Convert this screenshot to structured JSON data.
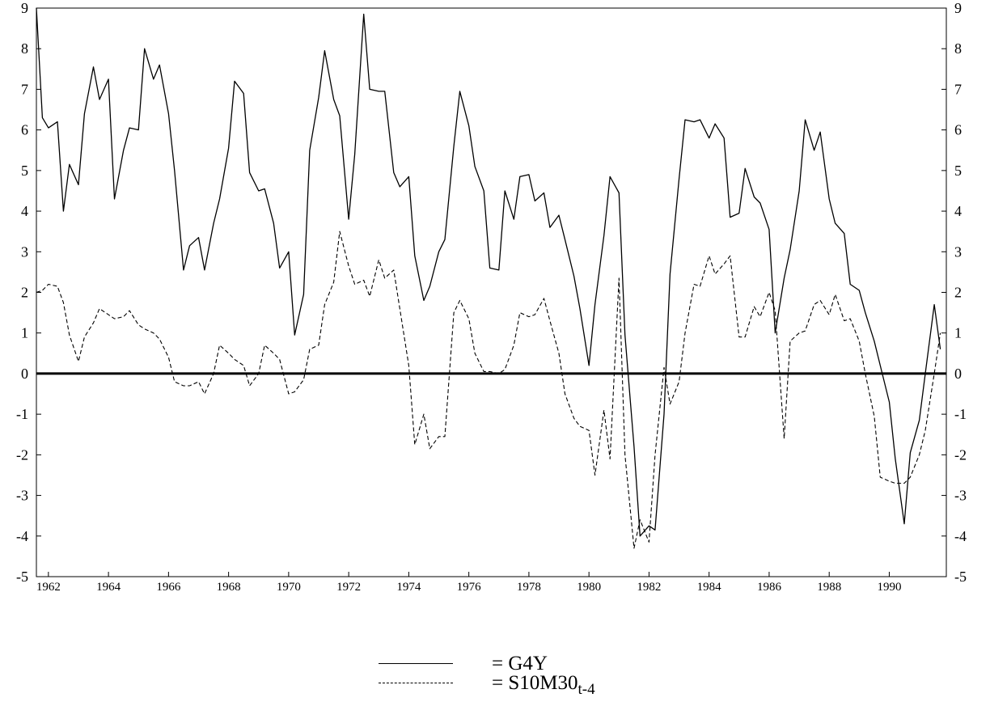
{
  "chart_data": {
    "type": "line",
    "x_ticks": [
      "1962",
      "1964",
      "1966",
      "1968",
      "1970",
      "1972",
      "1974",
      "1976",
      "1978",
      "1980",
      "1982",
      "1984",
      "1986",
      "1988",
      "1990"
    ],
    "y_ticks": [
      "9",
      "8",
      "7",
      "6",
      "5",
      "4",
      "3",
      "2",
      "1",
      "0",
      "-1",
      "-2",
      "-3",
      "-4",
      "-5"
    ],
    "xlim": [
      1961.6,
      1991.9
    ],
    "ylim": [
      -5,
      9
    ],
    "series": [
      {
        "name": "G4Y",
        "style": "solid",
        "points": [
          [
            1961.6,
            9.0
          ],
          [
            1961.8,
            6.3
          ],
          [
            1962.0,
            6.05
          ],
          [
            1962.3,
            6.2
          ],
          [
            1962.5,
            4.0
          ],
          [
            1962.7,
            5.15
          ],
          [
            1963.0,
            4.65
          ],
          [
            1963.2,
            6.4
          ],
          [
            1963.5,
            7.55
          ],
          [
            1963.7,
            6.75
          ],
          [
            1964.0,
            7.25
          ],
          [
            1964.2,
            4.3
          ],
          [
            1964.5,
            5.5
          ],
          [
            1964.7,
            6.05
          ],
          [
            1965.0,
            6.0
          ],
          [
            1965.2,
            8.0
          ],
          [
            1965.5,
            7.25
          ],
          [
            1965.7,
            7.6
          ],
          [
            1966.0,
            6.4
          ],
          [
            1966.2,
            5.0
          ],
          [
            1966.5,
            2.55
          ],
          [
            1966.7,
            3.15
          ],
          [
            1967.0,
            3.35
          ],
          [
            1967.2,
            2.55
          ],
          [
            1967.5,
            3.7
          ],
          [
            1967.7,
            4.3
          ],
          [
            1968.0,
            5.55
          ],
          [
            1968.2,
            7.2
          ],
          [
            1968.5,
            6.9
          ],
          [
            1968.7,
            4.95
          ],
          [
            1969.0,
            4.5
          ],
          [
            1969.2,
            4.55
          ],
          [
            1969.5,
            3.7
          ],
          [
            1969.7,
            2.6
          ],
          [
            1970.0,
            3.0
          ],
          [
            1970.2,
            0.95
          ],
          [
            1970.5,
            1.95
          ],
          [
            1970.7,
            5.5
          ],
          [
            1971.0,
            6.8
          ],
          [
            1971.2,
            7.95
          ],
          [
            1971.5,
            6.75
          ],
          [
            1971.7,
            6.35
          ],
          [
            1972.0,
            3.8
          ],
          [
            1972.2,
            5.4
          ],
          [
            1972.5,
            8.85
          ],
          [
            1972.7,
            7.0
          ],
          [
            1973.0,
            6.95
          ],
          [
            1973.2,
            6.95
          ],
          [
            1973.5,
            4.95
          ],
          [
            1973.7,
            4.6
          ],
          [
            1974.0,
            4.85
          ],
          [
            1974.2,
            2.9
          ],
          [
            1974.5,
            1.8
          ],
          [
            1974.7,
            2.15
          ],
          [
            1975.0,
            3.0
          ],
          [
            1975.2,
            3.3
          ],
          [
            1975.5,
            5.6
          ],
          [
            1975.7,
            6.95
          ],
          [
            1976.0,
            6.1
          ],
          [
            1976.2,
            5.1
          ],
          [
            1976.5,
            4.5
          ],
          [
            1976.7,
            2.6
          ],
          [
            1977.0,
            2.55
          ],
          [
            1977.2,
            4.5
          ],
          [
            1977.5,
            3.8
          ],
          [
            1977.7,
            4.85
          ],
          [
            1978.0,
            4.9
          ],
          [
            1978.2,
            4.25
          ],
          [
            1978.5,
            4.45
          ],
          [
            1978.7,
            3.6
          ],
          [
            1979.0,
            3.9
          ],
          [
            1979.2,
            3.3
          ],
          [
            1979.5,
            2.4
          ],
          [
            1979.7,
            1.6
          ],
          [
            1980.0,
            0.2
          ],
          [
            1980.2,
            1.7
          ],
          [
            1980.5,
            3.4
          ],
          [
            1980.7,
            4.85
          ],
          [
            1981.0,
            4.45
          ],
          [
            1981.2,
            0.95
          ],
          [
            1981.5,
            -1.8
          ],
          [
            1981.7,
            -4.0
          ],
          [
            1982.0,
            -3.75
          ],
          [
            1982.2,
            -3.85
          ],
          [
            1982.5,
            -1.0
          ],
          [
            1982.7,
            2.45
          ],
          [
            1983.0,
            4.8
          ],
          [
            1983.2,
            6.25
          ],
          [
            1983.5,
            6.2
          ],
          [
            1983.7,
            6.25
          ],
          [
            1984.0,
            5.8
          ],
          [
            1984.2,
            6.15
          ],
          [
            1984.5,
            5.8
          ],
          [
            1984.7,
            3.85
          ],
          [
            1985.0,
            3.95
          ],
          [
            1985.2,
            5.05
          ],
          [
            1985.5,
            4.35
          ],
          [
            1985.7,
            4.2
          ],
          [
            1986.0,
            3.55
          ],
          [
            1986.2,
            1.0
          ],
          [
            1986.5,
            2.35
          ],
          [
            1986.7,
            3.05
          ],
          [
            1987.0,
            4.5
          ],
          [
            1987.2,
            6.25
          ],
          [
            1987.5,
            5.5
          ],
          [
            1987.7,
            5.95
          ],
          [
            1988.0,
            4.3
          ],
          [
            1988.2,
            3.7
          ],
          [
            1988.5,
            3.45
          ],
          [
            1988.7,
            2.2
          ],
          [
            1989.0,
            2.05
          ],
          [
            1989.2,
            1.5
          ],
          [
            1989.5,
            0.8
          ],
          [
            1989.7,
            0.2
          ],
          [
            1990.0,
            -0.7
          ],
          [
            1990.2,
            -2.1
          ],
          [
            1990.5,
            -3.7
          ],
          [
            1990.7,
            -1.95
          ],
          [
            1991.0,
            -1.15
          ],
          [
            1991.2,
            0.0
          ],
          [
            1991.5,
            1.7
          ],
          [
            1991.7,
            0.6
          ]
        ]
      },
      {
        "name": "S10M30",
        "name_subscript": "t-4",
        "style": "dashed",
        "points": [
          [
            1961.6,
            2.0
          ],
          [
            1961.8,
            2.05
          ],
          [
            1962.0,
            2.2
          ],
          [
            1962.3,
            2.15
          ],
          [
            1962.5,
            1.75
          ],
          [
            1962.7,
            0.95
          ],
          [
            1963.0,
            0.3
          ],
          [
            1963.2,
            0.9
          ],
          [
            1963.5,
            1.25
          ],
          [
            1963.7,
            1.6
          ],
          [
            1964.0,
            1.45
          ],
          [
            1964.2,
            1.35
          ],
          [
            1964.5,
            1.4
          ],
          [
            1964.7,
            1.55
          ],
          [
            1965.0,
            1.2
          ],
          [
            1965.2,
            1.1
          ],
          [
            1965.5,
            1.0
          ],
          [
            1965.7,
            0.85
          ],
          [
            1966.0,
            0.4
          ],
          [
            1966.2,
            -0.2
          ],
          [
            1966.5,
            -0.3
          ],
          [
            1966.7,
            -0.3
          ],
          [
            1967.0,
            -0.2
          ],
          [
            1967.2,
            -0.5
          ],
          [
            1967.5,
            0.0
          ],
          [
            1967.7,
            0.7
          ],
          [
            1968.0,
            0.5
          ],
          [
            1968.2,
            0.35
          ],
          [
            1968.5,
            0.2
          ],
          [
            1968.7,
            -0.3
          ],
          [
            1969.0,
            0.0
          ],
          [
            1969.2,
            0.7
          ],
          [
            1969.5,
            0.5
          ],
          [
            1969.7,
            0.35
          ],
          [
            1970.0,
            -0.5
          ],
          [
            1970.2,
            -0.45
          ],
          [
            1970.5,
            -0.15
          ],
          [
            1970.7,
            0.6
          ],
          [
            1971.0,
            0.7
          ],
          [
            1971.2,
            1.7
          ],
          [
            1971.5,
            2.25
          ],
          [
            1971.7,
            3.5
          ],
          [
            1972.0,
            2.65
          ],
          [
            1972.2,
            2.2
          ],
          [
            1972.5,
            2.3
          ],
          [
            1972.7,
            1.9
          ],
          [
            1973.0,
            2.8
          ],
          [
            1973.2,
            2.35
          ],
          [
            1973.5,
            2.55
          ],
          [
            1973.7,
            1.6
          ],
          [
            1974.0,
            0.2
          ],
          [
            1974.2,
            -1.75
          ],
          [
            1974.5,
            -1.0
          ],
          [
            1974.7,
            -1.85
          ],
          [
            1975.0,
            -1.55
          ],
          [
            1975.2,
            -1.55
          ],
          [
            1975.5,
            1.5
          ],
          [
            1975.7,
            1.8
          ],
          [
            1976.0,
            1.35
          ],
          [
            1976.2,
            0.5
          ],
          [
            1976.5,
            0.05
          ],
          [
            1976.7,
            0.05
          ],
          [
            1977.0,
            0.0
          ],
          [
            1977.2,
            0.1
          ],
          [
            1977.5,
            0.7
          ],
          [
            1977.7,
            1.5
          ],
          [
            1978.0,
            1.4
          ],
          [
            1978.2,
            1.45
          ],
          [
            1978.5,
            1.85
          ],
          [
            1978.7,
            1.3
          ],
          [
            1979.0,
            0.5
          ],
          [
            1979.2,
            -0.5
          ],
          [
            1979.5,
            -1.1
          ],
          [
            1979.7,
            -1.3
          ],
          [
            1980.0,
            -1.4
          ],
          [
            1980.2,
            -2.5
          ],
          [
            1980.5,
            -0.9
          ],
          [
            1980.7,
            -2.1
          ],
          [
            1981.0,
            2.35
          ],
          [
            1981.2,
            -2.0
          ],
          [
            1981.5,
            -4.3
          ],
          [
            1981.7,
            -3.6
          ],
          [
            1982.0,
            -4.15
          ],
          [
            1982.2,
            -2.0
          ],
          [
            1982.5,
            0.15
          ],
          [
            1982.7,
            -0.75
          ],
          [
            1983.0,
            -0.2
          ],
          [
            1983.2,
            1.0
          ],
          [
            1983.5,
            2.2
          ],
          [
            1983.7,
            2.15
          ],
          [
            1984.0,
            2.9
          ],
          [
            1984.2,
            2.45
          ],
          [
            1984.5,
            2.7
          ],
          [
            1984.7,
            2.9
          ],
          [
            1985.0,
            0.9
          ],
          [
            1985.2,
            0.9
          ],
          [
            1985.5,
            1.65
          ],
          [
            1985.7,
            1.4
          ],
          [
            1986.0,
            2.0
          ],
          [
            1986.2,
            1.55
          ],
          [
            1986.5,
            -1.6
          ],
          [
            1986.7,
            0.8
          ],
          [
            1987.0,
            1.0
          ],
          [
            1987.2,
            1.05
          ],
          [
            1987.5,
            1.7
          ],
          [
            1987.7,
            1.8
          ],
          [
            1988.0,
            1.45
          ],
          [
            1988.2,
            1.95
          ],
          [
            1988.5,
            1.3
          ],
          [
            1988.7,
            1.35
          ],
          [
            1989.0,
            0.8
          ],
          [
            1989.2,
            0.0
          ],
          [
            1989.5,
            -1.05
          ],
          [
            1989.7,
            -2.55
          ],
          [
            1990.0,
            -2.65
          ],
          [
            1990.2,
            -2.7
          ],
          [
            1990.5,
            -2.7
          ],
          [
            1990.7,
            -2.55
          ],
          [
            1991.0,
            -2.0
          ],
          [
            1991.2,
            -1.4
          ],
          [
            1991.5,
            0.0
          ],
          [
            1991.7,
            1.0
          ]
        ]
      }
    ],
    "zero_line": 0,
    "grid": false,
    "legend_position": "bottom-center"
  }
}
